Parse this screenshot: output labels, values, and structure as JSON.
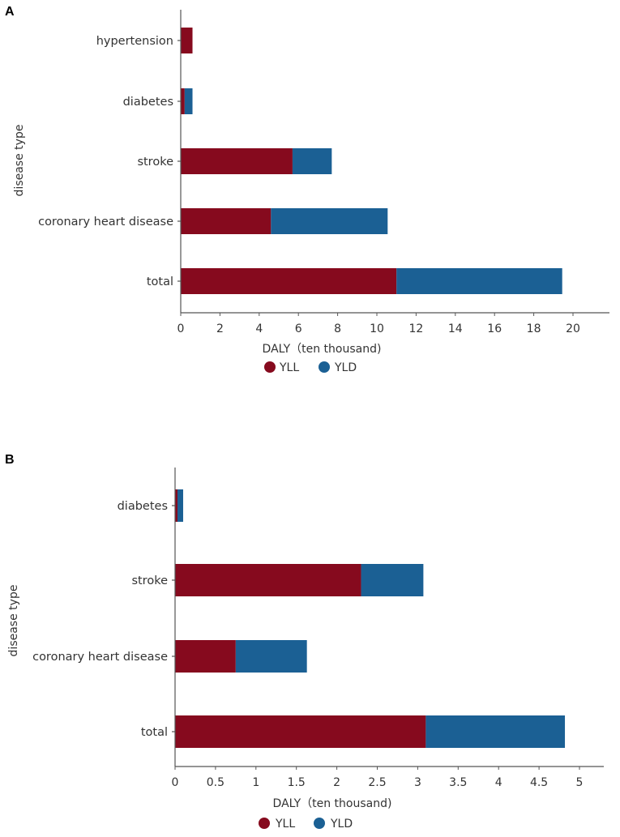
{
  "colors": {
    "yll": "#860a1e",
    "yld": "#1b6094",
    "axis": "#555555"
  },
  "panels": [
    {
      "label": "A"
    },
    {
      "label": "B"
    }
  ],
  "chart_data": [
    {
      "panel": "A",
      "type": "bar",
      "orientation": "horizontal",
      "stacked": true,
      "categories": [
        "hypertension",
        "diabetes",
        "stroke",
        "coronary heart disease",
        "total"
      ],
      "series": [
        {
          "name": "YLL",
          "values": [
            0.6,
            0.2,
            5.7,
            4.6,
            11.0
          ]
        },
        {
          "name": "YLD",
          "values": [
            0.0,
            0.4,
            2.0,
            5.95,
            8.45
          ]
        }
      ],
      "xlabel": "DALY（ten thousand)",
      "ylabel": "disease type",
      "xlim": [
        0,
        21
      ],
      "xticks": [
        0,
        2,
        4,
        6,
        8,
        10,
        12,
        14,
        16,
        18,
        20
      ],
      "xtick_labels": [
        "0",
        "2",
        "4",
        "6",
        "8",
        "10",
        "12",
        "14",
        "16",
        "18",
        "20"
      ],
      "legend": [
        "YLL",
        "YLD"
      ],
      "legend_position": "bottom"
    },
    {
      "panel": "B",
      "type": "bar",
      "orientation": "horizontal",
      "stacked": true,
      "categories": [
        "diabetes",
        "stroke",
        "coronary heart disease",
        "total"
      ],
      "series": [
        {
          "name": "YLL",
          "values": [
            0.03,
            2.3,
            0.75,
            3.1
          ]
        },
        {
          "name": "YLD",
          "values": [
            0.07,
            0.77,
            0.88,
            1.72
          ]
        }
      ],
      "xlabel": "DALY（ten thousand)",
      "ylabel": "disease type",
      "xlim": [
        0,
        5.3
      ],
      "xticks": [
        0,
        0.5,
        1,
        1.5,
        2,
        2.5,
        3,
        3.5,
        4,
        4.5,
        5
      ],
      "xtick_labels": [
        "0",
        "0.5",
        "1",
        "1.5",
        "2",
        "2.5",
        "3",
        "3.5",
        "4",
        "4.5",
        "5"
      ],
      "legend": [
        "YLL",
        "YLD"
      ],
      "legend_position": "bottom"
    }
  ]
}
